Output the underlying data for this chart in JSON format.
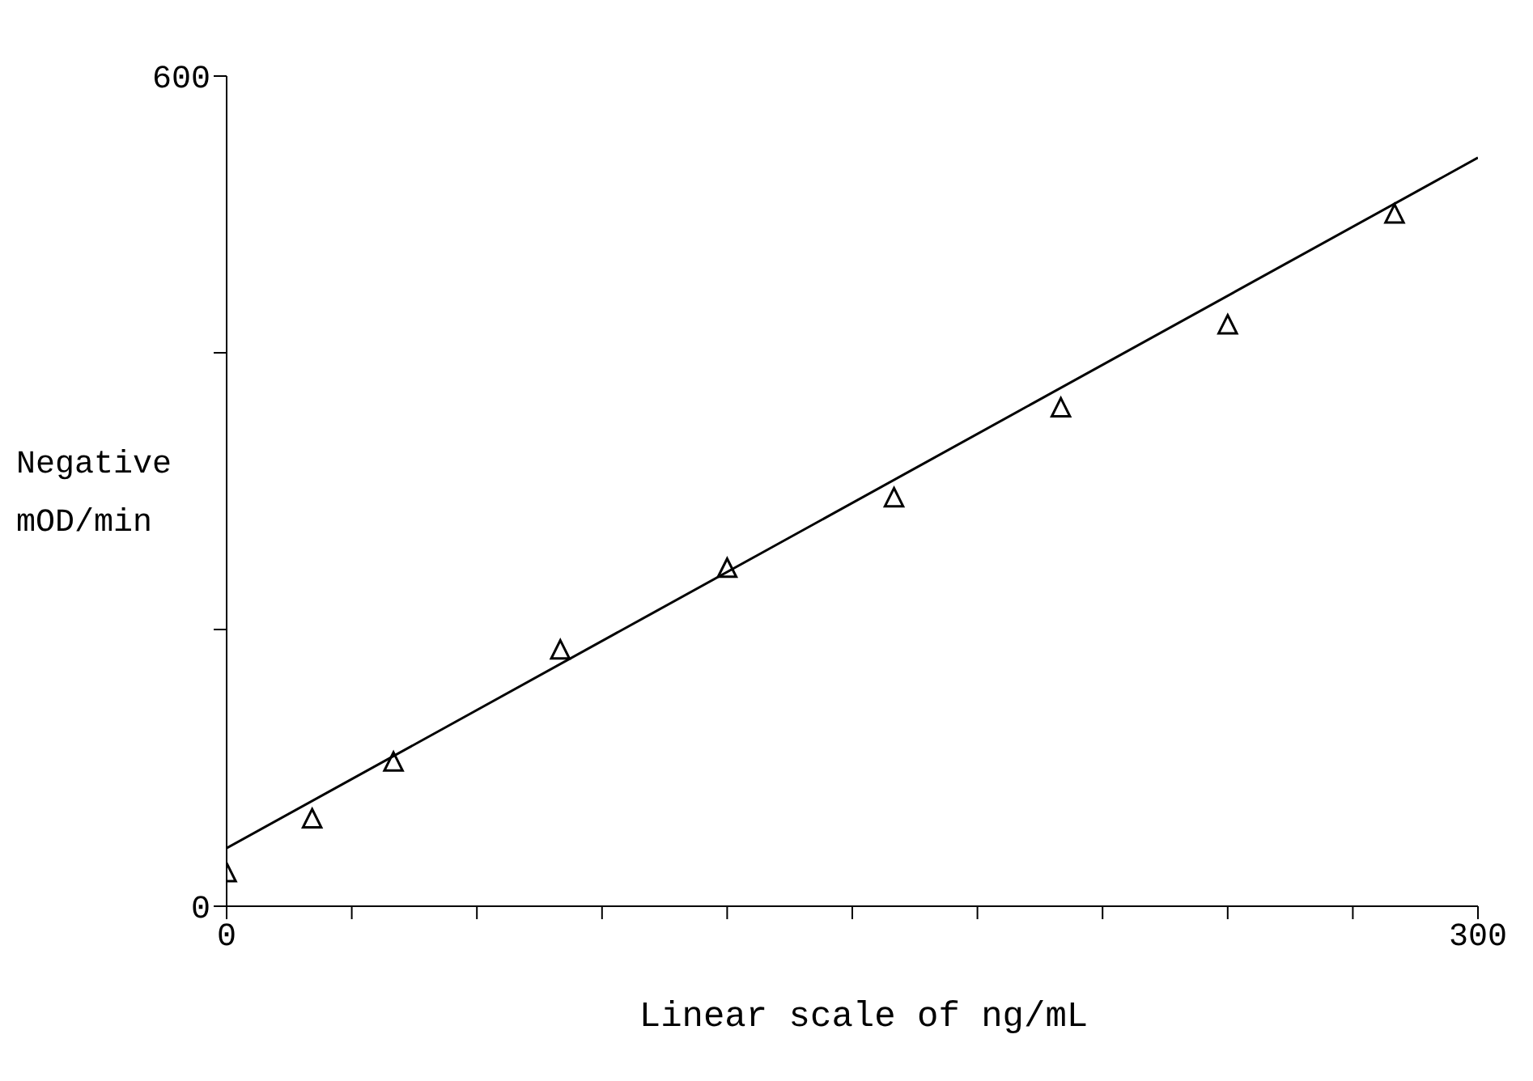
{
  "chart_data": {
    "type": "scatter",
    "xlabel": "Linear scale of ng/mL",
    "ylabel": "Negative mOD/min",
    "xlim": [
      0,
      300
    ],
    "xticks": [
      0,
      {
        "value": 30,
        "label": null
      },
      {
        "value": 60,
        "label": null
      },
      {
        "value": 90,
        "label": null
      },
      {
        "value": 120,
        "label": null
      },
      {
        "value": 150,
        "label": null
      },
      {
        "value": 180,
        "label": null
      },
      {
        "value": 210,
        "label": null
      },
      {
        "value": 240,
        "label": null
      },
      {
        "value": 270,
        "label": null
      },
      300
    ],
    "ylim": [
      0,
      600
    ],
    "yticks": [
      0,
      {
        "value": 200,
        "label": null
      },
      {
        "value": 400,
        "label": null
      },
      600
    ],
    "marker": "triangle",
    "series": [
      {
        "color": "#000000",
        "x": [
          0,
          20.5,
          40,
          80,
          120,
          160,
          200,
          240,
          280
        ],
        "values": [
          23,
          62,
          103,
          184,
          243,
          294,
          359,
          419,
          499
        ]
      },
      {
        "type": "line",
        "color": "#000000",
        "marker": "none",
        "x": [
          0,
          300
        ],
        "values": [
          42,
          541
        ]
      }
    ]
  }
}
